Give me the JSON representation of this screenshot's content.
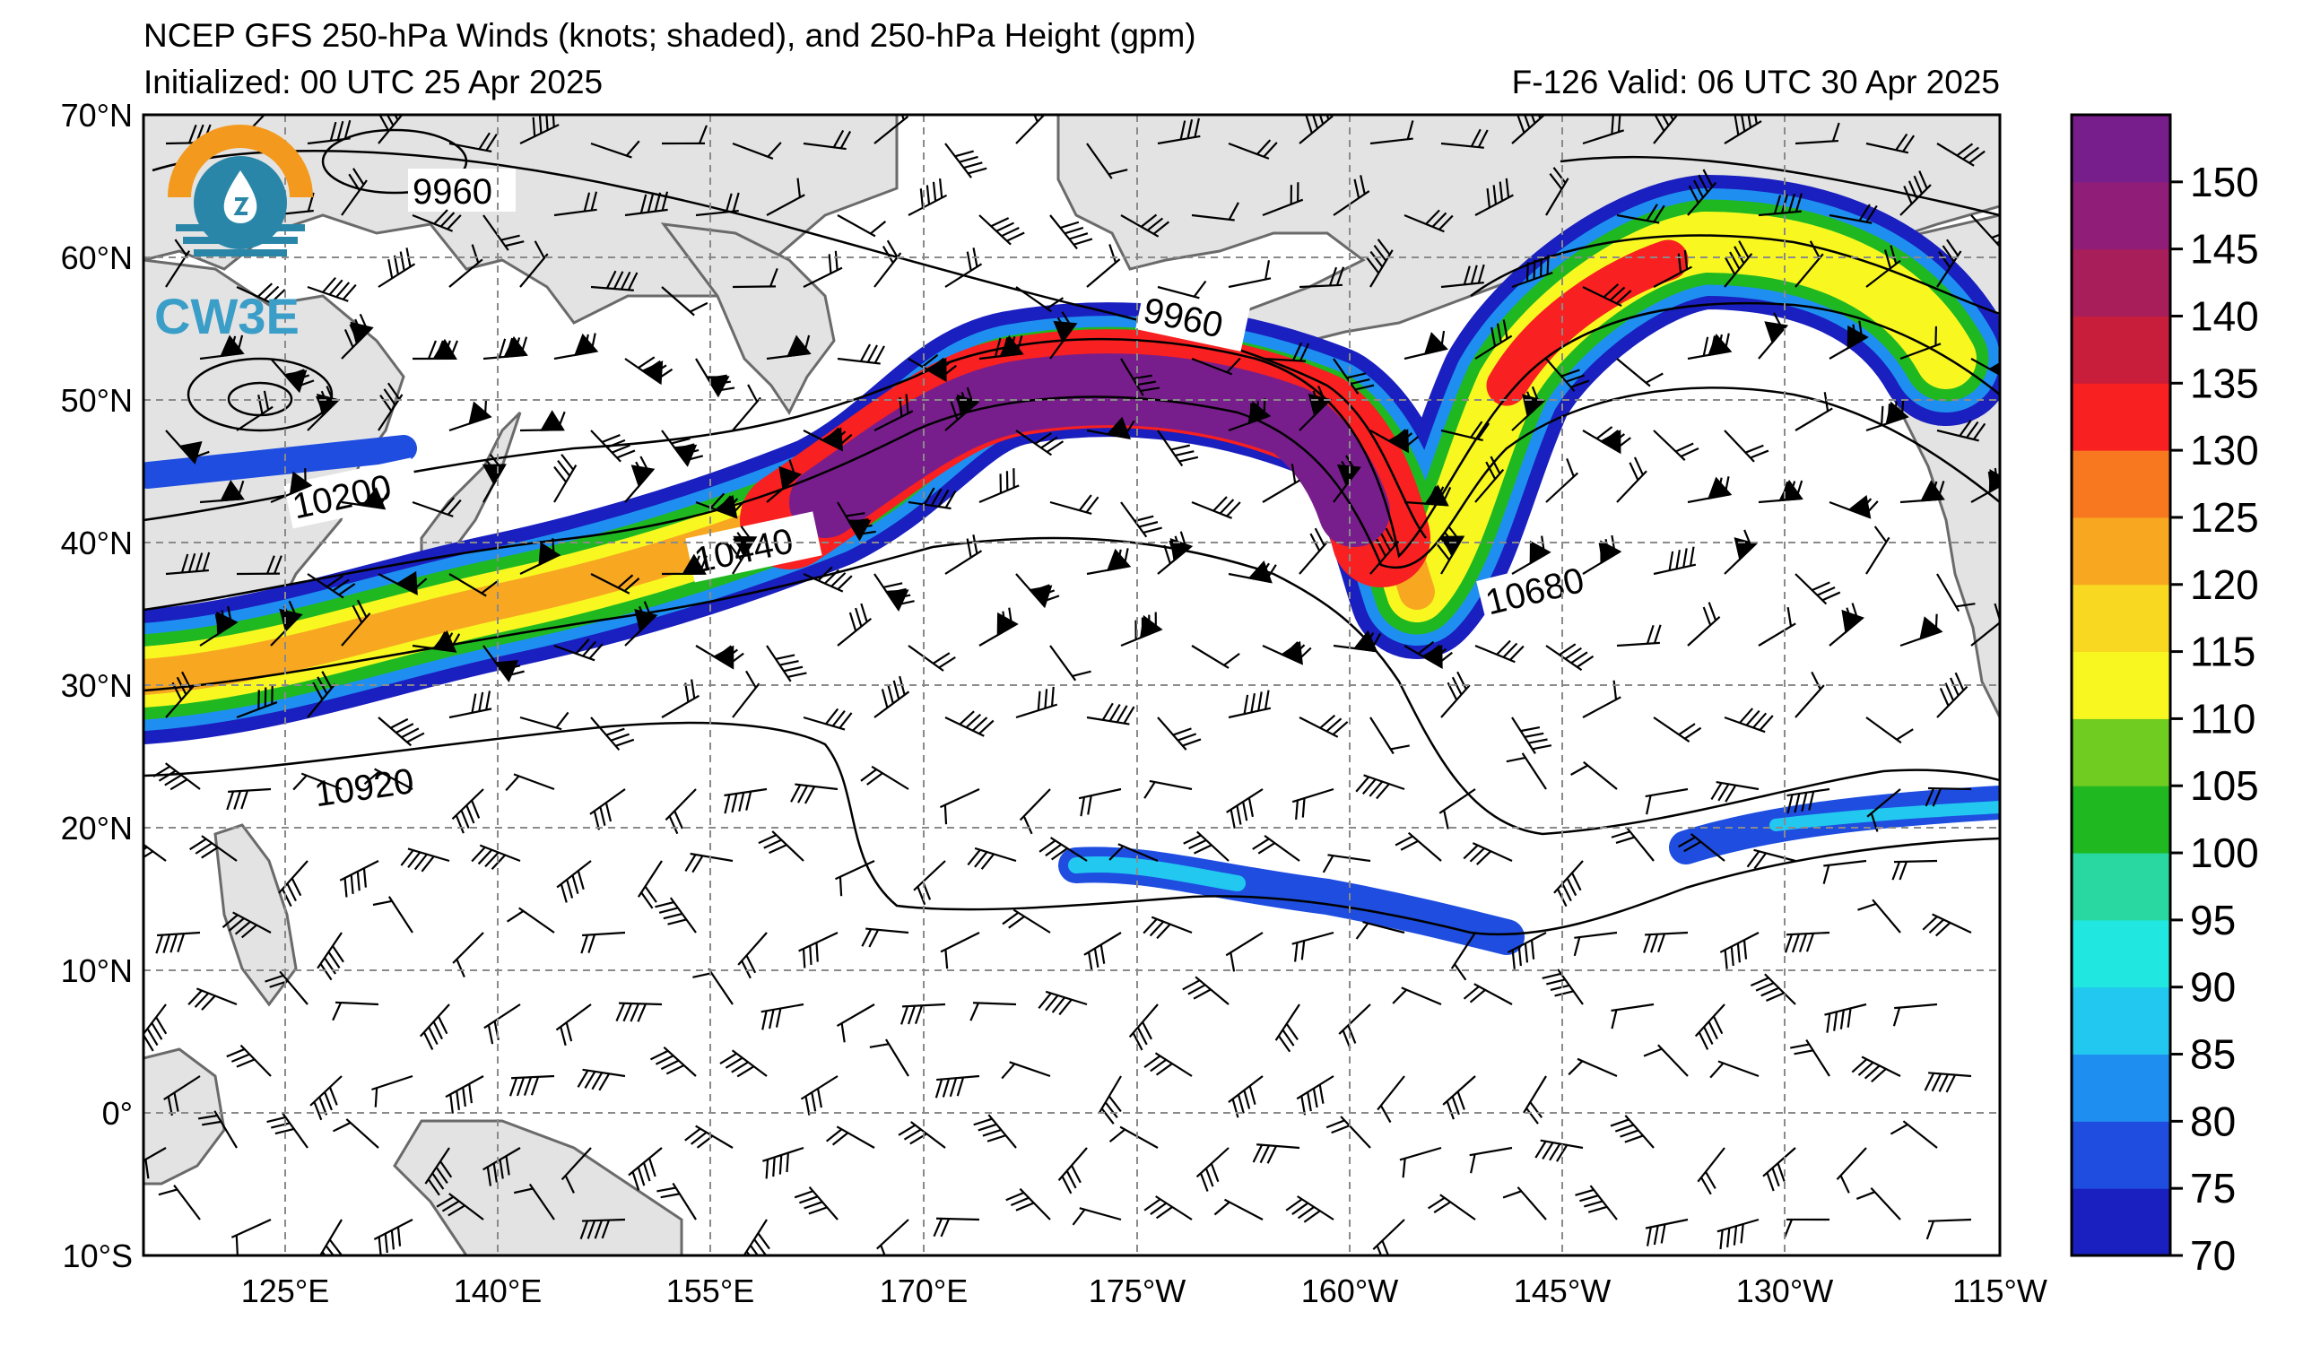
{
  "header": {
    "title": "NCEP GFS 250-hPa Winds (knots; shaded), and 250-hPa Height (gpm)",
    "initialized": "Initialized: 00 UTC 25 Apr 2025",
    "forecast_valid": "F-126  Valid: 06 UTC 30 Apr 2025"
  },
  "logo": {
    "text": "CW3E"
  },
  "map": {
    "lat_labels": [
      "70°N",
      "60°N",
      "50°N",
      "40°N",
      "30°N",
      "20°N",
      "10°N",
      "0°",
      "10°S"
    ],
    "lon_labels": [
      "125°E",
      "140°E",
      "155°E",
      "170°E",
      "175°W",
      "160°W",
      "145°W",
      "130°W",
      "115°W"
    ],
    "ocean_color": "#ffffff",
    "land_color": "#e3e3e3",
    "grid": "dashed gray"
  },
  "contour_labels": [
    "9960",
    "9960",
    "10200",
    "10440",
    "10680",
    "10920"
  ],
  "colorbar": {
    "ticks": [
      "70",
      "75",
      "80",
      "85",
      "90",
      "95",
      "100",
      "105",
      "110",
      "115",
      "120",
      "125",
      "130",
      "135",
      "140",
      "145",
      "150"
    ],
    "colors": [
      "#1a1fbf",
      "#1e4de0",
      "#1e8ff0",
      "#22c8f0",
      "#20e8e0",
      "#28d8a0",
      "#20b820",
      "#70cc20",
      "#f8f820",
      "#f8d820",
      "#f8a820",
      "#f87820",
      "#f82020",
      "#c81e3c",
      "#a81e5a",
      "#901e78",
      "#781e8c"
    ]
  }
}
